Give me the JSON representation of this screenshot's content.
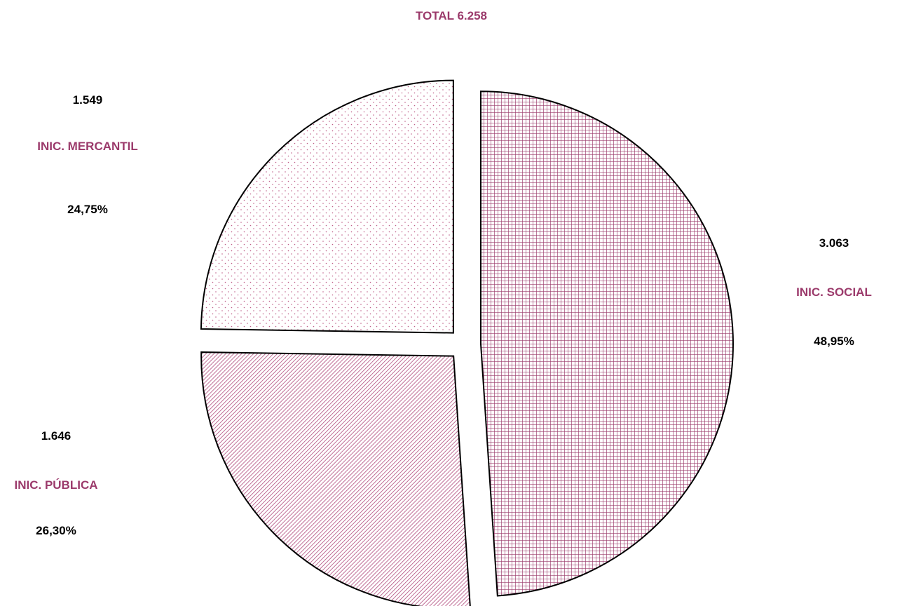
{
  "chart_data": {
    "type": "pie",
    "title": "TOTAL 6.258",
    "slices": [
      {
        "name": "INIC. SOCIAL",
        "value": 3063,
        "value_label": "3.063",
        "percent_label": "48,95%",
        "pattern": "grid"
      },
      {
        "name": "INIC. PÚBLICA",
        "value": 1646,
        "value_label": "1.646",
        "percent_label": "26,30%",
        "pattern": "diagonal"
      },
      {
        "name": "INIC. MERCANTIL",
        "value": 1549,
        "value_label": "1.549",
        "percent_label": "24,75%",
        "pattern": "dots"
      }
    ],
    "exploded": true,
    "start": "12 o'clock",
    "direction": "clockwise",
    "legend": "none"
  },
  "colors": {
    "accent": "#9b3a6b",
    "label_text": "#000000",
    "outline": "#000000",
    "background": "#ffffff"
  }
}
